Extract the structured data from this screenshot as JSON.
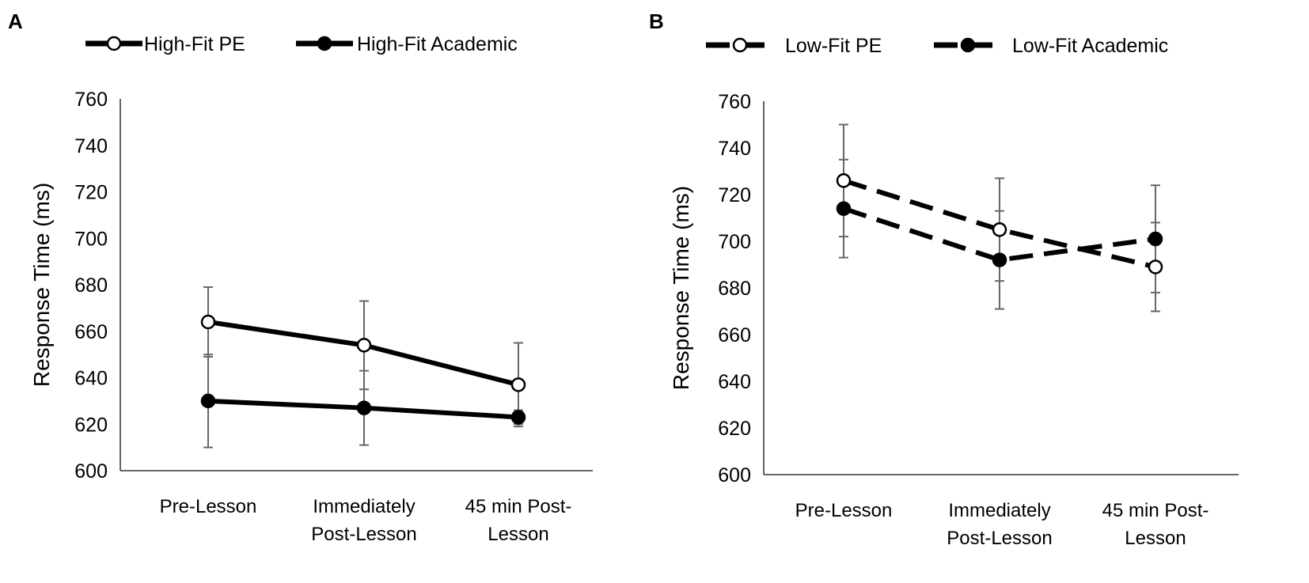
{
  "chart_data": [
    {
      "panel": "A",
      "type": "line",
      "ylabel": "Response Time (ms)",
      "xlabel": "",
      "ylim": [
        600,
        760
      ],
      "yticks": [
        600,
        620,
        640,
        660,
        680,
        700,
        720,
        740,
        760
      ],
      "categories": [
        [
          "Pre-Lesson"
        ],
        [
          "Immediately",
          "Post-Lesson"
        ],
        [
          "45 min Post-",
          "Lesson"
        ]
      ],
      "series": [
        {
          "name": "High-Fit PE",
          "marker": "open",
          "dashed": false,
          "values": [
            664,
            654,
            637
          ],
          "error": [
            15,
            19,
            18
          ]
        },
        {
          "name": "High-Fit Academic",
          "marker": "filled",
          "dashed": false,
          "values": [
            630,
            627,
            623
          ],
          "error": [
            20,
            16,
            3
          ]
        }
      ],
      "legend": "top"
    },
    {
      "panel": "B",
      "type": "line",
      "ylabel": "Response Time (ms)",
      "xlabel": "",
      "ylim": [
        600,
        760
      ],
      "yticks": [
        600,
        620,
        640,
        660,
        680,
        700,
        720,
        740,
        760
      ],
      "categories": [
        [
          "Pre-Lesson"
        ],
        [
          "Immediately",
          "Post-Lesson"
        ],
        [
          "45 min Post-",
          "Lesson"
        ]
      ],
      "series": [
        {
          "name": "Low-Fit PE",
          "marker": "open",
          "dashed": true,
          "values": [
            726,
            705,
            689
          ],
          "error": [
            24,
            22,
            19
          ]
        },
        {
          "name": "Low-Fit Academic",
          "marker": "filled",
          "dashed": true,
          "values": [
            714,
            692,
            701
          ],
          "error": [
            21,
            21,
            23
          ]
        }
      ],
      "legend": "top"
    }
  ]
}
